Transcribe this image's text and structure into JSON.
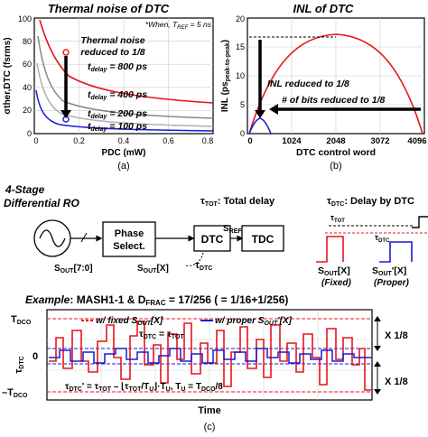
{
  "colors": {
    "red": "#e8141b",
    "blue": "#1a1ad6",
    "gray1": "#888888",
    "gray2": "#b0b0b0",
    "gray3": "#cfcfcf",
    "black": "#000000"
  },
  "panel_a": {
    "title": "Thermal noise of DTC",
    "note": "*When, T",
    "note_sub": "REF",
    "note_tail": " = 5 ns",
    "annot1": "Thermal noise",
    "annot2": "reduced to 1/8",
    "ylabel": "σther,DTC (fsrms)",
    "xlabel": "PDC (mW)",
    "caption": "(a)",
    "yticks": [
      "0",
      "20",
      "40",
      "60",
      "80",
      "100"
    ],
    "xticks": [
      "0",
      "0.2",
      "0.4",
      "0.6",
      "0.8"
    ],
    "labels": [
      {
        "text": "t",
        "sub": "delay",
        "val": " = 800 ps",
        "color": "red"
      },
      {
        "text": "t",
        "sub": "delay",
        "val": " = 400 ps",
        "color": "gray1"
      },
      {
        "text": "t",
        "sub": "delay",
        "val": " = 200 ps",
        "color": "gray2"
      },
      {
        "text": "t",
        "sub": "delay",
        "val": " = 100 ps",
        "color": "blue"
      }
    ]
  },
  "panel_b": {
    "title": "INL of DTC",
    "ylabel": "INL (ps",
    "ylabel_sub": "peak-to-peak",
    "ylabel_tail": ")",
    "annot1": "INL reduced to 1/8",
    "annot2": "# of bits reduced to 1/8",
    "xlabel": "DTC control word",
    "caption": "(b)",
    "yticks": [
      "0",
      "5",
      "10",
      "15",
      "20"
    ],
    "xticks": [
      "0",
      "1024",
      "2048",
      "3072",
      "4096"
    ]
  },
  "panel_c": {
    "block_title1": "4-Stage",
    "block_title2": "Differential RO",
    "phase_select1": "Phase",
    "phase_select2": "Select.",
    "dtc": "DTC",
    "tdc": "TDC",
    "sout70": "S",
    "sout70_sub": "OUT",
    "sout70_tail": "[7:0]",
    "soutx_tail": "[X]",
    "sref": "S",
    "sref_sub": "REF",
    "tau_dtc": "τ",
    "tau_dtc_sub": "DTC",
    "tau_tot_def": ": Total delay",
    "tau_dtc_def": ": Delay by DTC",
    "tau_tot_sub": "TOT",
    "fixed_label1": "S",
    "fixed_label_tail": "[X]",
    "fixed_label2": "(Fixed)",
    "proper_label_tail": "'[X]",
    "proper_label2": "(Proper)",
    "example": "Example",
    "example_tail": ": MASH1-1 & D",
    "example_sub": "FRAC",
    "example_eq": " = 17/256 ( = 1/16+1/256)",
    "legend_fixed": "w/ fixed S",
    "legend_proper": "w/ proper S",
    "eq_top": " = τ",
    "eq_bottom": "'  = τ",
    "eq_bottom_tail": " – ⌊τ",
    "eq_bottom_tail2": "/T",
    "eq_bottom_tail3": "⌋·T",
    "eq_bottom_tail4": ", T",
    "eq_bottom_tail5": " = T",
    "eq_bottom_tail6": "/8",
    "tdco": "T",
    "tdco_sub": "DCO",
    "minus_tdco": "–T",
    "zero": "0",
    "x18": "X 1/8",
    "time": "Time",
    "caption": "(c)"
  }
}
